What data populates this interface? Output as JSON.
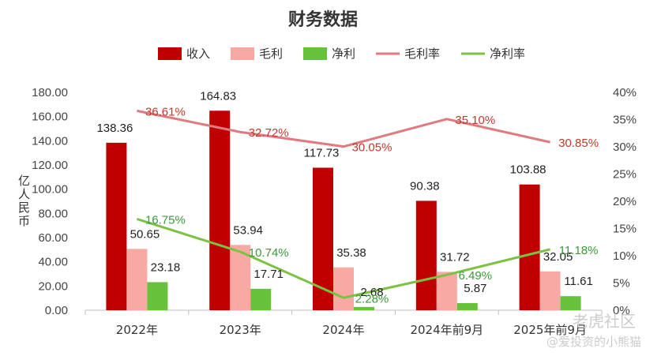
{
  "chart_data": {
    "type": "bar",
    "title": "财务数据",
    "ylabel": "亿人民币",
    "xlabel": "",
    "categories": [
      "2022年",
      "2023年",
      "2024年",
      "2024年前9月",
      "2025年前9月"
    ],
    "ylim": [
      0,
      180
    ],
    "yticks": [
      "0.00",
      "20.00",
      "40.00",
      "60.00",
      "80.00",
      "100.00",
      "120.00",
      "140.00",
      "160.00",
      "180.00"
    ],
    "y2lim": [
      0,
      40
    ],
    "y2ticks": [
      "0%",
      "5%",
      "10%",
      "15%",
      "20%",
      "25%",
      "30%",
      "35%",
      "40%"
    ],
    "grid": false,
    "legend_position": "top",
    "series": [
      {
        "name": "收入",
        "kind": "bar",
        "axis": "left",
        "color": "#C00000",
        "values": [
          138.36,
          164.83,
          117.73,
          90.38,
          103.88
        ],
        "labels": [
          "138.36",
          "164.83",
          "117.73",
          "90.38",
          "103.88"
        ]
      },
      {
        "name": "毛利",
        "kind": "bar",
        "axis": "left",
        "color": "#F8A9A4",
        "values": [
          50.65,
          53.94,
          35.38,
          31.72,
          32.05
        ],
        "labels": [
          "50.65",
          "53.94",
          "35.38",
          "31.72",
          "32.05"
        ]
      },
      {
        "name": "净利",
        "kind": "bar",
        "axis": "left",
        "color": "#66C23A",
        "values": [
          23.18,
          17.71,
          2.68,
          5.87,
          11.61
        ],
        "labels": [
          "23.18",
          "17.71",
          "2.68",
          "5.87",
          "11.61"
        ]
      },
      {
        "name": "毛利率",
        "kind": "line",
        "axis": "right",
        "color": "#E07A7F",
        "label_color": "#C0392B",
        "values": [
          36.61,
          32.72,
          30.05,
          35.1,
          30.85
        ],
        "labels": [
          "36.61%",
          "32.72%",
          "30.05%",
          "35.10%",
          "30.85%"
        ]
      },
      {
        "name": "净利率",
        "kind": "line",
        "axis": "right",
        "color": "#7CC242",
        "label_color": "#3A9A3A",
        "values": [
          16.75,
          10.74,
          2.28,
          6.49,
          11.18
        ],
        "labels": [
          "16.75%",
          "10.74%",
          "2.28%",
          "6.49%",
          "11.18%"
        ]
      }
    ]
  },
  "watermark": {
    "line1": "老虎社区",
    "line2": "@爱投资的小熊猫"
  }
}
